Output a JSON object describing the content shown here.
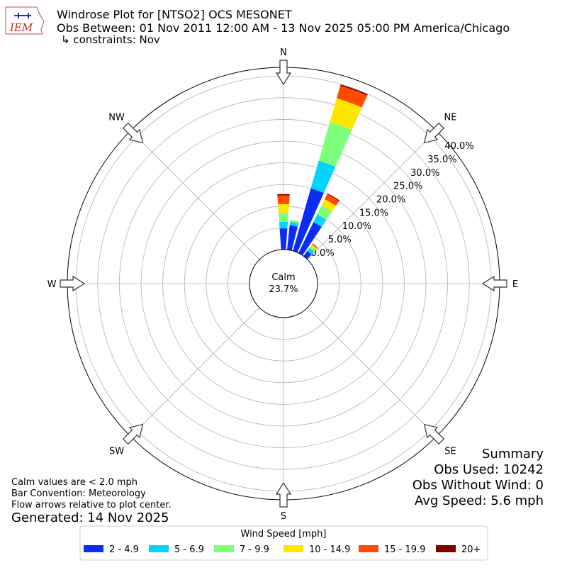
{
  "chart_data": {
    "type": "windrose",
    "title": "Windrose Plot for [NTSO2] OCS MESONET",
    "subtitle": "Obs Between: 01 Nov 2011 12:00 AM - 13 Nov 2025 05:00 PM America/Chicago",
    "constraints": "↳ constraints: Nov",
    "logo_text": "IEM",
    "compass": [
      "N",
      "NE",
      "E",
      "SE",
      "S",
      "SW",
      "W",
      "NW"
    ],
    "calm_label": "Calm",
    "calm_value": "23.7%",
    "rlim": [
      0,
      42
    ],
    "rticks": [
      {
        "value": 0,
        "label": "0.0%"
      },
      {
        "value": 5,
        "label": "5.0%"
      },
      {
        "value": 10,
        "label": "10.0%"
      },
      {
        "value": 15,
        "label": "15.0%"
      },
      {
        "value": 20,
        "label": "20.0%"
      },
      {
        "value": 25,
        "label": "25.0%"
      },
      {
        "value": 30,
        "label": "30.0%"
      },
      {
        "value": 35,
        "label": "35.0%"
      },
      {
        "value": 40,
        "label": "40.0%"
      }
    ],
    "directions": [
      0,
      10,
      20,
      30,
      40
    ],
    "legend_title": "Wind Speed [mph]",
    "series": [
      {
        "name": "2 - 4.9",
        "color": "#0a2cf5",
        "values": [
          4.9,
          5.7,
          15.0,
          7.9,
          1.5
        ]
      },
      {
        "name": "5 - 6.9",
        "color": "#00d5ff",
        "values": [
          1.5,
          0.8,
          6.6,
          2.0,
          0.8
        ]
      },
      {
        "name": "7 - 9.9",
        "color": "#7dff7a",
        "values": [
          2.1,
          0.4,
          9.3,
          2.3,
          0.5
        ]
      },
      {
        "name": "10 - 14.9",
        "color": "#ffe600",
        "values": [
          2.0,
          0.1,
          5.7,
          1.6,
          0.5
        ]
      },
      {
        "name": "15 - 19.9",
        "color": "#ff4a00",
        "values": [
          2.0,
          0,
          3.0,
          1.3,
          0.3
        ]
      },
      {
        "name": "20+",
        "color": "#800000",
        "values": [
          0.3,
          0,
          0.3,
          0.2,
          0
        ]
      }
    ],
    "notes": [
      "Calm values are < 2.0 mph",
      "Bar Convention: Meteorology",
      "Flow arrows relative to plot center."
    ],
    "generated": "Generated: 14 Nov 2025",
    "summary": [
      "Summary",
      "Obs Used: 10242",
      "Obs Without Wind: 0",
      "Avg Speed: 5.6 mph"
    ]
  }
}
